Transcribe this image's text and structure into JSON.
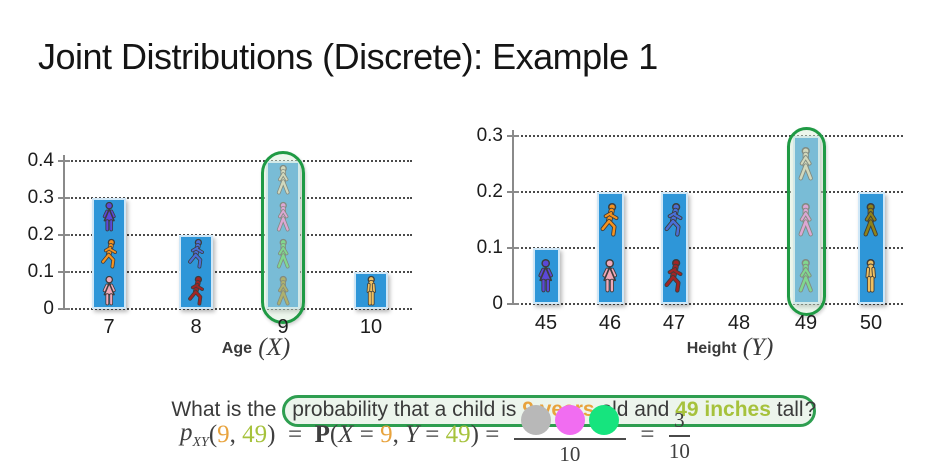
{
  "title": "Joint Distributions (Discrete): Example 1",
  "colors": {
    "bar": "#2e96d8",
    "bar_border": "#cfe7f7",
    "highlight_ring": "#1f9a44",
    "question_box_border": "#2e9e50",
    "question_box_bg": "#ecf5ec",
    "age_accent": "#e8a33d",
    "height_accent": "#a6c23c",
    "text": "#3a3a3a"
  },
  "chart_data": [
    {
      "type": "bar",
      "title": "",
      "xlabel": "Age",
      "xlabel_math": "(X)",
      "ylabel": "",
      "ylim": [
        0,
        0.4
      ],
      "yticks": [
        "0",
        "0.1",
        "0.2",
        "0.3",
        "0.4"
      ],
      "grid": "dotted",
      "categories": [
        "7",
        "8",
        "9",
        "10"
      ],
      "values": [
        0.3,
        0.2,
        0.4,
        0.1
      ],
      "highlight_category": "9",
      "bars": [
        {
          "label": "7",
          "value": 0.3,
          "persons": [
            {
              "name": "purple-woman-icon",
              "pose": "dress",
              "color": "#5b48d8"
            },
            {
              "name": "orange-runner-icon",
              "pose": "run",
              "color": "#f5921e"
            },
            {
              "name": "pink-girl-icon",
              "pose": "dress",
              "color": "#f2a9b8"
            }
          ]
        },
        {
          "label": "8",
          "value": 0.2,
          "persons": [
            {
              "name": "blue-runner-icon",
              "pose": "run",
              "color": "#4a6fd8"
            },
            {
              "name": "red-runner-icon",
              "pose": "run",
              "color": "#a32424"
            }
          ]
        },
        {
          "label": "9",
          "value": 0.4,
          "persons": [
            {
              "name": "tan-walker-icon",
              "pose": "walk",
              "color": "#cfc8a8"
            },
            {
              "name": "magenta-walker-icon",
              "pose": "walk",
              "color": "#e46fd2"
            },
            {
              "name": "green-walker-icon",
              "pose": "walk",
              "color": "#3dc954"
            },
            {
              "name": "olive-walker-icon",
              "pose": "walk",
              "color": "#8f8218"
            }
          ]
        },
        {
          "label": "10",
          "value": 0.1,
          "persons": [
            {
              "name": "yellow-man-icon",
              "pose": "stand",
              "color": "#f0c060"
            }
          ]
        }
      ]
    },
    {
      "type": "bar",
      "title": "",
      "xlabel": "Height",
      "xlabel_math": "(Y)",
      "ylabel": "",
      "ylim": [
        0,
        0.3
      ],
      "yticks": [
        "0",
        "0.1",
        "0.2",
        "0.3"
      ],
      "grid": "dotted",
      "categories": [
        "45",
        "46",
        "47",
        "48",
        "49",
        "50"
      ],
      "values": [
        0.1,
        0.2,
        0.2,
        0,
        0.3,
        0.2
      ],
      "highlight_category": "49",
      "bars": [
        {
          "label": "45",
          "value": 0.1,
          "persons": [
            {
              "name": "purple-woman-icon",
              "pose": "dress",
              "color": "#5b48d8"
            }
          ]
        },
        {
          "label": "46",
          "value": 0.2,
          "persons": [
            {
              "name": "orange-runner-icon",
              "pose": "run",
              "color": "#f5921e"
            },
            {
              "name": "pink-girl-icon",
              "pose": "dress",
              "color": "#f2a9b8"
            }
          ]
        },
        {
          "label": "47",
          "value": 0.2,
          "persons": [
            {
              "name": "blue-runner-icon",
              "pose": "run",
              "color": "#4a6fd8"
            },
            {
              "name": "red-runner-icon",
              "pose": "run",
              "color": "#a32424"
            }
          ]
        },
        {
          "label": "48",
          "value": 0,
          "persons": []
        },
        {
          "label": "49",
          "value": 0.3,
          "persons": [
            {
              "name": "tan-walker-icon",
              "pose": "walk",
              "color": "#cfc8a8"
            },
            {
              "name": "magenta-walker-icon",
              "pose": "walk",
              "color": "#e46fd2"
            },
            {
              "name": "green-walker-icon",
              "pose": "walk",
              "color": "#3dc954"
            }
          ]
        },
        {
          "label": "50",
          "value": 0.2,
          "persons": [
            {
              "name": "olive-walker-icon",
              "pose": "walk",
              "color": "#8f8218"
            },
            {
              "name": "yellow-man-icon",
              "pose": "stand",
              "color": "#f0c060"
            }
          ]
        }
      ]
    }
  ],
  "question": {
    "prefix": "What is the ",
    "boxed_1": "probability that a child is ",
    "age_highlight": "9 years",
    "mid": " old and ",
    "height_highlight": "49 inches",
    "boxed_2": " tall",
    "suffix": "?"
  },
  "formula": {
    "p": "p",
    "sub": "XY",
    "args_open": "(",
    "arg_x": "9",
    "args_comma": ", ",
    "arg_y": "49",
    "args_close": ")",
    "equals1": "  =  ",
    "P": "P",
    "open2": "(",
    "x_name": "X",
    "eq_x": " = ",
    "x_value": "9",
    "comma2": ", ",
    "y_name": "Y",
    "eq_y": " = ",
    "y_value": "49",
    "close2": ") =  ",
    "count_circles": [
      {
        "name": "gray-child-circle",
        "color": "#b8b8b8"
      },
      {
        "name": "magenta-child-circle",
        "color": "#f16df1"
      },
      {
        "name": "green-child-circle",
        "color": "#16e47e"
      }
    ],
    "den1": "10",
    "equals2": "  =  ",
    "num2": "3",
    "den2": "10"
  }
}
